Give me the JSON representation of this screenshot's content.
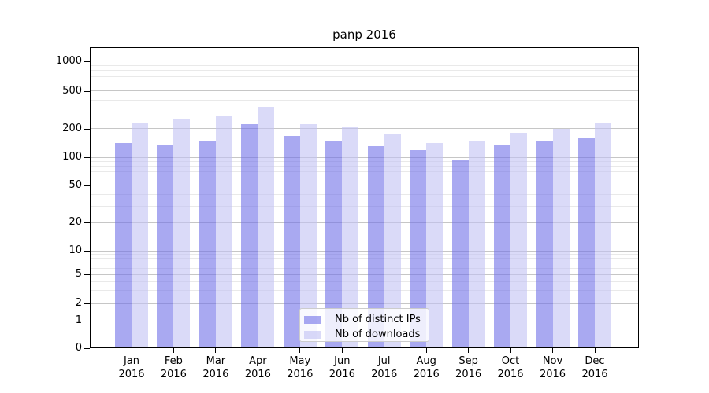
{
  "chart_data": {
    "type": "bar",
    "title": "panp 2016",
    "xlabel": "",
    "ylabel": "",
    "year": "2016",
    "categories": [
      "Jan",
      "Feb",
      "Mar",
      "Apr",
      "May",
      "Jun",
      "Jul",
      "Aug",
      "Sep",
      "Oct",
      "Nov",
      "Dec"
    ],
    "series": [
      {
        "name": "Nb of distinct IPs",
        "color": "rgba(112,112,232,0.6)",
        "values": [
          140,
          133,
          150,
          221,
          168,
          148,
          130,
          118,
          94,
          134,
          150,
          158
        ]
      },
      {
        "name": "Nb of downloads",
        "color": "rgba(193,193,243,0.6)",
        "values": [
          233,
          251,
          274,
          340,
          221,
          209,
          175,
          141,
          147,
          181,
          197,
          226
        ]
      }
    ],
    "yscale": "symlog",
    "ylim": [
      0,
      1380
    ],
    "y_ticks": [
      0,
      1,
      2,
      5,
      10,
      20,
      50,
      100,
      200,
      500,
      1000
    ],
    "y_minor_ticks": [
      3,
      4,
      6,
      7,
      8,
      9,
      30,
      40,
      60,
      70,
      80,
      90,
      300,
      400,
      600,
      700,
      800,
      900
    ],
    "grid": true,
    "legend_position": "lower center",
    "colors": {
      "major_grid": "#c6c6c6",
      "minor_grid": "#e9e9e9",
      "spine": "#000000",
      "background": "#ffffff"
    }
  }
}
